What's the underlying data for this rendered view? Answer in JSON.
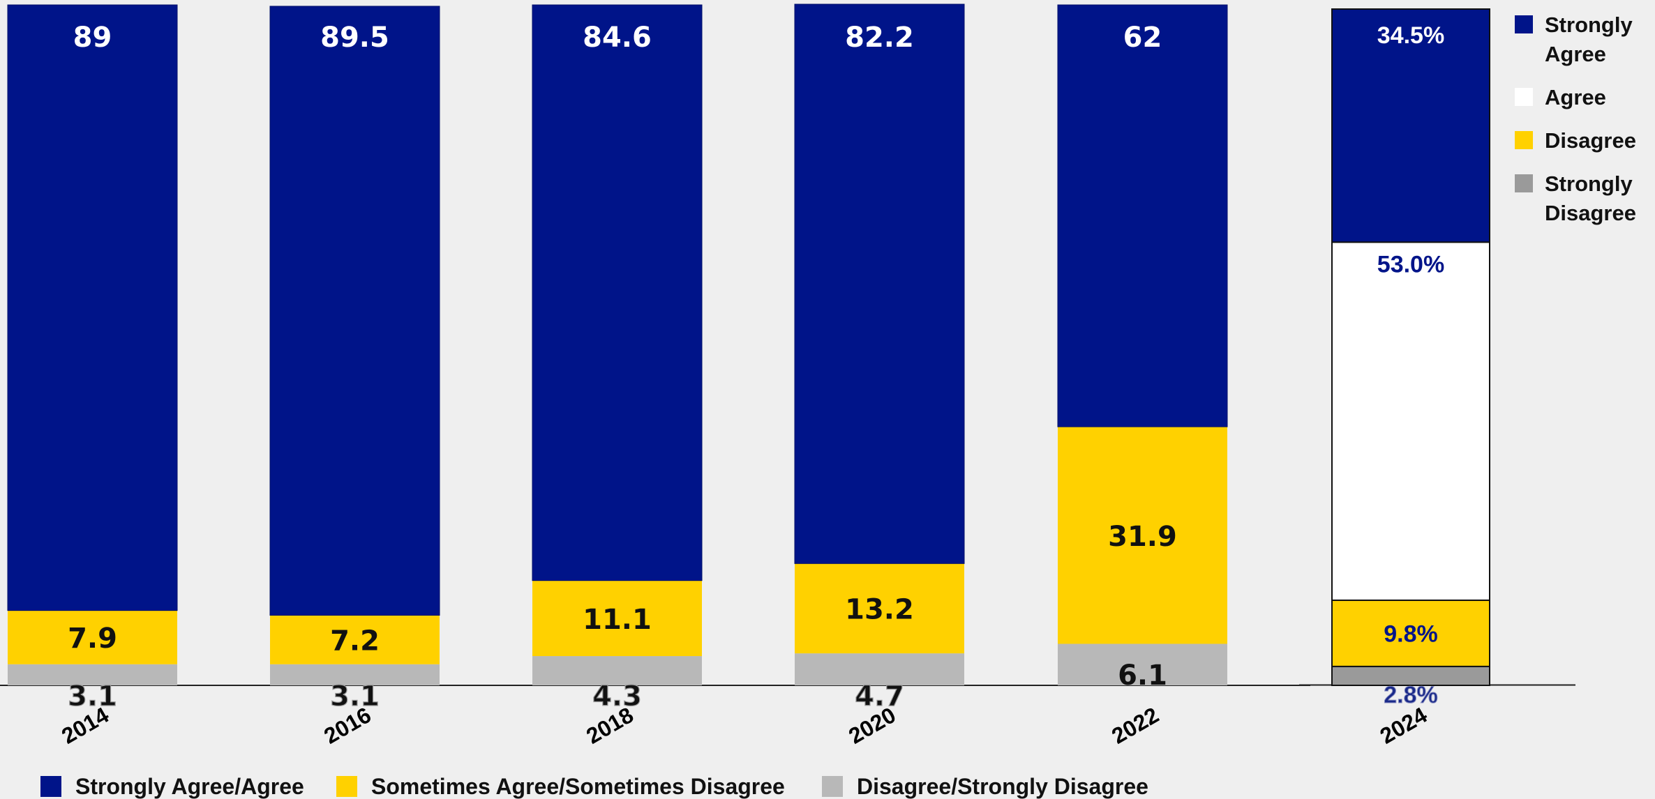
{
  "colors": {
    "strongly_agree_agree": "#001489",
    "sometimes": "#ffd100",
    "disagree": "#b8b8b8",
    "agree_2024": "#ffffff",
    "strongly_disagree_2024": "#9a9a9a",
    "background": "#efefef"
  },
  "chart_data": {
    "type": "bar",
    "stacked": true,
    "categories": [
      "2014",
      "2016",
      "2018",
      "2020",
      "2022"
    ],
    "series": [
      {
        "name": "Disagree/Strongly Disagree",
        "values": [
          3.1,
          3.1,
          4.3,
          4.7,
          6.1
        ],
        "labels": [
          "3.1",
          "3.1",
          "4.3",
          "4.7",
          "6.1"
        ]
      },
      {
        "name": "Sometimes Agree/Sometimes Disagree",
        "values": [
          7.9,
          7.2,
          11.1,
          13.2,
          31.9
        ],
        "labels": [
          "7.9",
          "7.2",
          "11.1",
          "13.2",
          "31.9"
        ]
      },
      {
        "name": "Strongly Agree/Agree",
        "values": [
          89,
          89.5,
          84.6,
          82.2,
          62
        ],
        "labels": [
          "89",
          "89.5",
          "84.6",
          "82.2",
          "62"
        ]
      }
    ],
    "bar_2024": {
      "category": "2024",
      "segments": [
        {
          "name": "Strongly Disagree",
          "value": 2.8,
          "label": "2.8%"
        },
        {
          "name": "Disagree",
          "value": 9.8,
          "label": "9.8%"
        },
        {
          "name": "Agree",
          "value": 53.0,
          "label": "53.0%"
        },
        {
          "name": "Strongly Agree",
          "value": 34.5,
          "label": "34.5%"
        }
      ]
    },
    "ylim": [
      0,
      100
    ],
    "grid": false,
    "legend_bottom": [
      "Strongly Agree/Agree",
      "Sometimes Agree/Sometimes Disagree",
      "Disagree/Strongly Disagree"
    ],
    "legend_right": [
      {
        "lines": [
          "Strongly",
          "Agree"
        ]
      },
      {
        "lines": [
          "Agree"
        ]
      },
      {
        "lines": [
          "Disagree"
        ]
      },
      {
        "lines": [
          "Strongly",
          "Disagree"
        ]
      }
    ]
  }
}
